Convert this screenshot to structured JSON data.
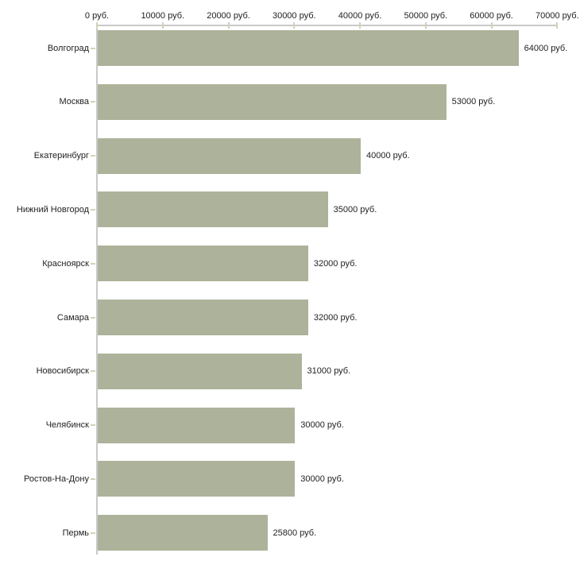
{
  "chart_data": {
    "type": "bar",
    "orientation": "horizontal",
    "title": "",
    "unit": "руб.",
    "categories": [
      "Волгоград",
      "Москва",
      "Екатеринбург",
      "Нижний Новгород",
      "Красноярск",
      "Самара",
      "Новосибирск",
      "Челябинск",
      "Ростов-На-Дону",
      "Пермь"
    ],
    "values": [
      64000,
      53000,
      40000,
      35000,
      32000,
      32000,
      31000,
      30000,
      30000,
      25800
    ],
    "value_labels": [
      "64000 руб.",
      "53000 руб.",
      "40000 руб.",
      "35000 руб.",
      "32000 руб.",
      "32000 руб.",
      "31000 руб.",
      "30000 руб.",
      "30000 руб.",
      "25800 руб."
    ],
    "x_axis": {
      "position": "top",
      "min": 0,
      "max": 70000,
      "tick_interval": 10000,
      "tick_labels": [
        "0 руб.",
        "10000 руб.",
        "20000 руб.",
        "30000 руб.",
        "40000 руб.",
        "50000 руб.",
        "60000 руб.",
        "70000 руб."
      ]
    },
    "legend": false,
    "grid": false,
    "colors": {
      "bar": "#adb39a",
      "axis_line": "#c9c9c9",
      "tick_mark": "#d5d2b5",
      "text": "#222222",
      "background": "#ffffff"
    }
  }
}
